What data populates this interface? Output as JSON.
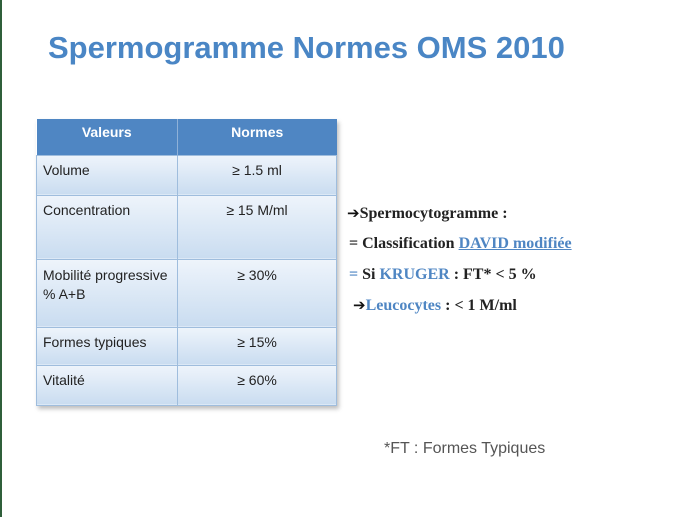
{
  "slide": {
    "title": "Spermogramme Normes OMS 2010",
    "table": {
      "headers": [
        "Valeurs",
        "Normes"
      ],
      "rows": [
        {
          "label": "Volume",
          "norm": "≥ 1.5 ml"
        },
        {
          "label": "Concentration",
          "norm": "≥ 15 M/ml"
        },
        {
          "label": "Mobilité progressive % A+B",
          "norm": "≥ 30%"
        },
        {
          "label": "Formes typiques",
          "norm": "≥ 15%"
        },
        {
          "label": "Vitalité",
          "norm": "≥ 60%"
        }
      ]
    },
    "notes": {
      "arrow": "➔",
      "line1": "Spermocytogramme :",
      "line2_prefix": "= Classification",
      "line2_link": "DAVID modifiée",
      "line3_eq": "=",
      "line3_si": "Si",
      "line3_kruger": "KRUGER",
      "line3_rest": ": FT* < 5 %",
      "line4_label": "Leucocytes",
      "line4_rest": ":  < 1 M/ml"
    },
    "footnote": "*FT : Formes Typiques"
  }
}
